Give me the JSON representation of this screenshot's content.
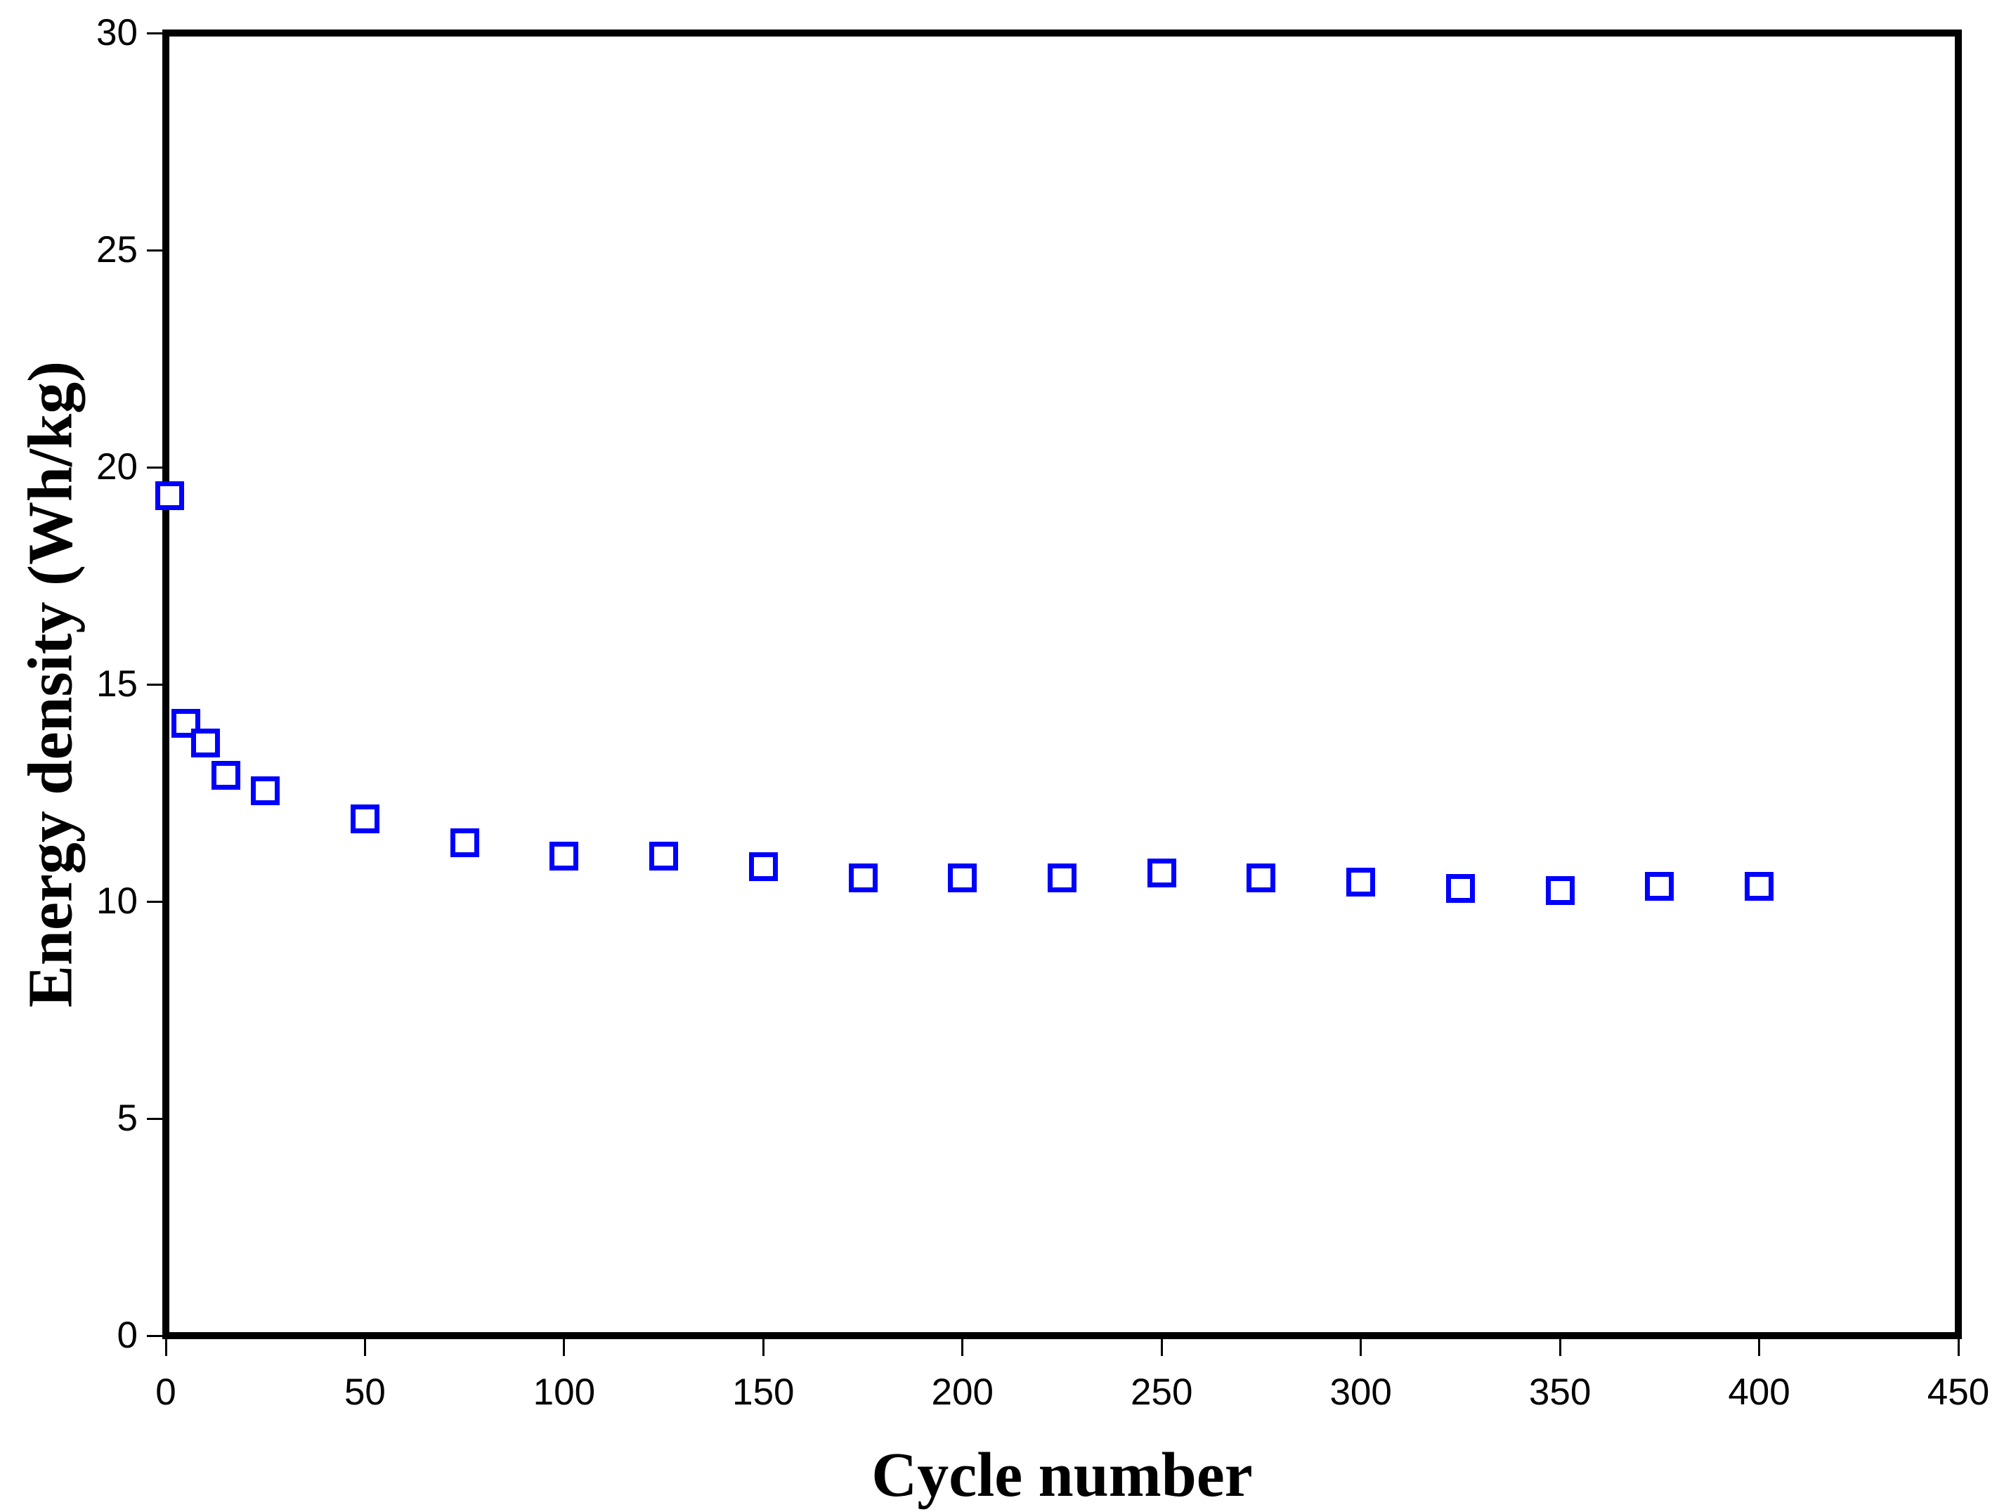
{
  "chart_data": {
    "type": "scatter",
    "title": "",
    "xlabel": "Cycle number",
    "ylabel": "Energy density (Wh/kg)",
    "xlim": [
      0,
      450
    ],
    "ylim": [
      0,
      30
    ],
    "x_ticks": [
      0,
      50,
      100,
      150,
      200,
      250,
      300,
      350,
      400,
      450
    ],
    "y_ticks": [
      0,
      5,
      10,
      15,
      20,
      25,
      30
    ],
    "grid": false,
    "legend": null,
    "series": [
      {
        "name": "Energy density",
        "marker": "open-square",
        "marker_color": "#0000ff",
        "points": [
          [
            1,
            19.35
          ],
          [
            5,
            14.1
          ],
          [
            10,
            13.65
          ],
          [
            15,
            12.9
          ],
          [
            25,
            12.55
          ],
          [
            50,
            11.9
          ],
          [
            75,
            11.35
          ],
          [
            100,
            11.05
          ],
          [
            125,
            11.05
          ],
          [
            150,
            10.8
          ],
          [
            175,
            10.55
          ],
          [
            200,
            10.55
          ],
          [
            225,
            10.55
          ],
          [
            250,
            10.65
          ],
          [
            275,
            10.55
          ],
          [
            300,
            10.45
          ],
          [
            325,
            10.3
          ],
          [
            350,
            10.25
          ],
          [
            375,
            10.35
          ],
          [
            400,
            10.35
          ]
        ]
      }
    ]
  },
  "colors": {
    "marker": "#0000ff",
    "axis": "#000000",
    "background": "#ffffff"
  }
}
